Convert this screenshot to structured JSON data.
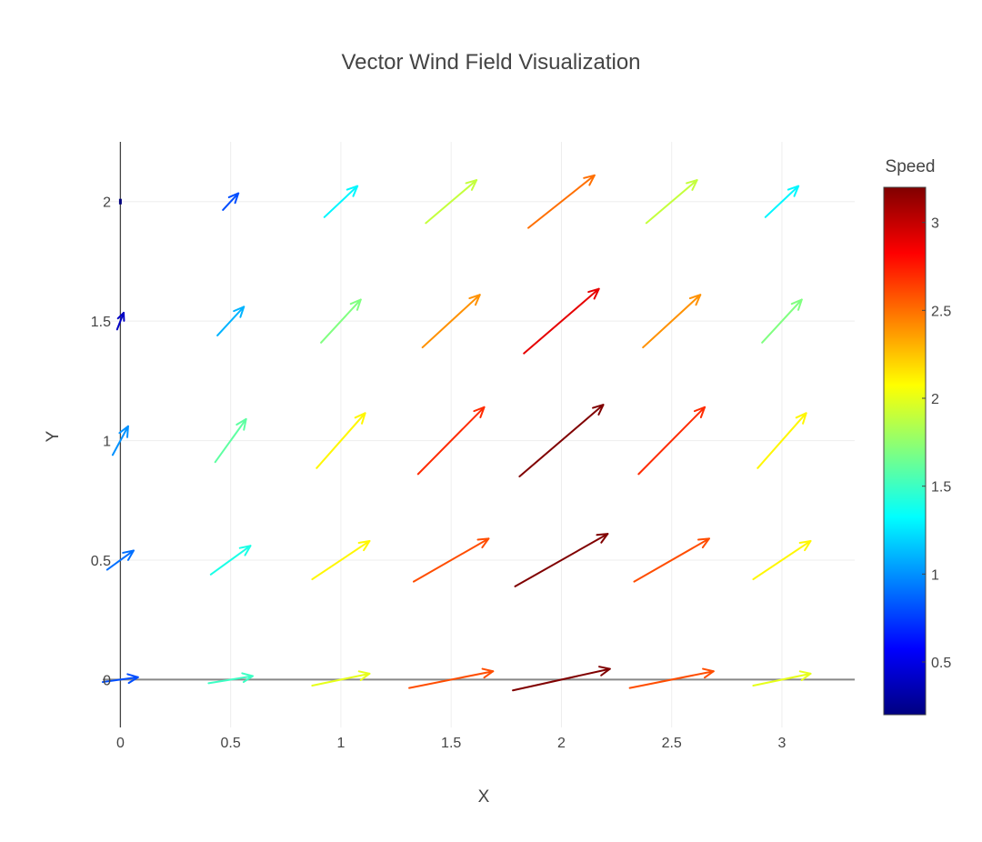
{
  "chart_data": {
    "type": "quiver",
    "title": "Vector Wind Field Visualization",
    "xlabel": "X",
    "ylabel": "Y",
    "xlim": [
      -0.08,
      3.33
    ],
    "ylim": [
      -0.2,
      2.25
    ],
    "xticks": [
      0,
      0.5,
      1,
      1.5,
      2,
      2.5,
      3
    ],
    "xtick_labels": [
      "0",
      "0.5",
      "1",
      "1.5",
      "2",
      "2.5",
      "3"
    ],
    "yticks": [
      0,
      0.5,
      1,
      1.5,
      2
    ],
    "ytick_labels": [
      "0",
      "0.5",
      "1",
      "1.5",
      "2"
    ],
    "grid": true,
    "colorbar": {
      "title": "Speed",
      "range": [
        0.2,
        3.2
      ],
      "ticks": [
        0.5,
        1,
        1.5,
        2,
        2.5,
        3
      ],
      "tick_labels": [
        "0.5",
        "1",
        "1.5",
        "2",
        "2.5",
        "3"
      ],
      "colorscale": [
        "#000080",
        "#0000ff",
        "#0080ff",
        "#00ffff",
        "#80ff80",
        "#ffff00",
        "#ff8000",
        "#ff0000",
        "#800000"
      ]
    },
    "vectors": [
      {
        "x": 0,
        "y": 0,
        "u": 0.16,
        "v": 0.02,
        "speed": 0.8
      },
      {
        "x": 0.5,
        "y": 0,
        "u": 0.2,
        "v": 0.03,
        "speed": 1.5
      },
      {
        "x": 1,
        "y": 0,
        "u": 0.26,
        "v": 0.05,
        "speed": 2.0
      },
      {
        "x": 1.5,
        "y": 0,
        "u": 0.38,
        "v": 0.07,
        "speed": 2.6
      },
      {
        "x": 2,
        "y": 0,
        "u": 0.44,
        "v": 0.09,
        "speed": 3.2
      },
      {
        "x": 2.5,
        "y": 0,
        "u": 0.38,
        "v": 0.07,
        "speed": 2.6
      },
      {
        "x": 3,
        "y": 0,
        "u": 0.26,
        "v": 0.05,
        "speed": 2.0
      },
      {
        "x": 0,
        "y": 0.5,
        "u": 0.12,
        "v": 0.08,
        "speed": 0.9
      },
      {
        "x": 0.5,
        "y": 0.5,
        "u": 0.18,
        "v": 0.12,
        "speed": 1.4
      },
      {
        "x": 1,
        "y": 0.5,
        "u": 0.26,
        "v": 0.16,
        "speed": 2.1
      },
      {
        "x": 1.5,
        "y": 0.5,
        "u": 0.34,
        "v": 0.18,
        "speed": 2.6
      },
      {
        "x": 2,
        "y": 0.5,
        "u": 0.42,
        "v": 0.22,
        "speed": 3.2
      },
      {
        "x": 2.5,
        "y": 0.5,
        "u": 0.34,
        "v": 0.18,
        "speed": 2.6
      },
      {
        "x": 3,
        "y": 0.5,
        "u": 0.26,
        "v": 0.16,
        "speed": 2.1
      },
      {
        "x": 0,
        "y": 1,
        "u": 0.07,
        "v": 0.12,
        "speed": 1.0
      },
      {
        "x": 0.5,
        "y": 1,
        "u": 0.14,
        "v": 0.18,
        "speed": 1.6
      },
      {
        "x": 1,
        "y": 1,
        "u": 0.22,
        "v": 0.23,
        "speed": 2.1
      },
      {
        "x": 1.5,
        "y": 1,
        "u": 0.3,
        "v": 0.28,
        "speed": 2.7
      },
      {
        "x": 2,
        "y": 1,
        "u": 0.38,
        "v": 0.3,
        "speed": 3.2
      },
      {
        "x": 2.5,
        "y": 1,
        "u": 0.3,
        "v": 0.28,
        "speed": 2.7
      },
      {
        "x": 3,
        "y": 1,
        "u": 0.22,
        "v": 0.23,
        "speed": 2.1
      },
      {
        "x": 0,
        "y": 1.5,
        "u": 0.03,
        "v": 0.07,
        "speed": 0.4
      },
      {
        "x": 0.5,
        "y": 1.5,
        "u": 0.12,
        "v": 0.12,
        "speed": 1.1
      },
      {
        "x": 1,
        "y": 1.5,
        "u": 0.18,
        "v": 0.18,
        "speed": 1.7
      },
      {
        "x": 1.5,
        "y": 1.5,
        "u": 0.26,
        "v": 0.22,
        "speed": 2.4
      },
      {
        "x": 2,
        "y": 1.5,
        "u": 0.34,
        "v": 0.27,
        "speed": 2.9
      },
      {
        "x": 2.5,
        "y": 1.5,
        "u": 0.26,
        "v": 0.22,
        "speed": 2.4
      },
      {
        "x": 3,
        "y": 1.5,
        "u": 0.18,
        "v": 0.18,
        "speed": 1.7
      },
      {
        "x": 0,
        "y": 2,
        "u": 0.0,
        "v": 0.005,
        "speed": 0.2
      },
      {
        "x": 0.5,
        "y": 2,
        "u": 0.07,
        "v": 0.07,
        "speed": 0.8
      },
      {
        "x": 1,
        "y": 2,
        "u": 0.15,
        "v": 0.13,
        "speed": 1.3
      },
      {
        "x": 1.5,
        "y": 2,
        "u": 0.23,
        "v": 0.18,
        "speed": 1.9
      },
      {
        "x": 2,
        "y": 2,
        "u": 0.3,
        "v": 0.22,
        "speed": 2.5
      },
      {
        "x": 2.5,
        "y": 2,
        "u": 0.23,
        "v": 0.18,
        "speed": 1.9
      },
      {
        "x": 3,
        "y": 2,
        "u": 0.15,
        "v": 0.13,
        "speed": 1.3
      }
    ]
  }
}
